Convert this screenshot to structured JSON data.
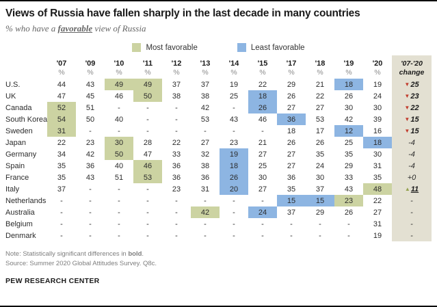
{
  "header": {
    "title": "Views of Russia have fallen sharply in the last decade in many countries",
    "subtitle_prefix": "% who have a ",
    "subtitle_emphasis": "favorable",
    "subtitle_suffix": " view of Russia"
  },
  "legend": {
    "most_label": "Most favorable",
    "least_label": "Least favorable"
  },
  "icons": {
    "decrease": "▼",
    "increase": "▲"
  },
  "colors": {
    "most_favorable": "#ccd3a2",
    "least_favorable": "#8db5e2",
    "change_col_bg": "#e3e0d2",
    "decrease": "#c13a2b",
    "increase": "#94a14e"
  },
  "chart_data": {
    "type": "table",
    "title": "Views of Russia have fallen sharply in the last decade in many countries",
    "unit": "%",
    "columns": [
      "'07",
      "'09",
      "'10",
      "'11",
      "'12",
      "'13",
      "'14",
      "'15",
      "'17",
      "'18",
      "'19",
      "'20"
    ],
    "change_header_line1": "'07-'20",
    "change_header_line2": "change",
    "rows": [
      {
        "country": "U.S.",
        "values": [
          "44",
          "43",
          "49",
          "49",
          "37",
          "37",
          "19",
          "22",
          "29",
          "21",
          "18",
          "19"
        ],
        "highlights": [
          null,
          null,
          "most",
          "most",
          null,
          null,
          null,
          null,
          null,
          null,
          "least",
          null
        ],
        "change": {
          "value": "25",
          "direction": "down",
          "significant": true
        }
      },
      {
        "country": "UK",
        "values": [
          "47",
          "45",
          "46",
          "50",
          "38",
          "38",
          "25",
          "18",
          "26",
          "22",
          "26",
          "24"
        ],
        "highlights": [
          null,
          null,
          null,
          "most",
          null,
          null,
          null,
          "least",
          null,
          null,
          null,
          null
        ],
        "change": {
          "value": "23",
          "direction": "down",
          "significant": true
        }
      },
      {
        "country": "Canada",
        "values": [
          "52",
          "51",
          "-",
          "-",
          "-",
          "42",
          "-",
          "26",
          "27",
          "27",
          "30",
          "30"
        ],
        "highlights": [
          "most",
          null,
          null,
          null,
          null,
          null,
          null,
          "least",
          null,
          null,
          null,
          null
        ],
        "change": {
          "value": "22",
          "direction": "down",
          "significant": true
        }
      },
      {
        "country": "South Korea",
        "values": [
          "54",
          "50",
          "40",
          "-",
          "-",
          "53",
          "43",
          "46",
          "36",
          "53",
          "42",
          "39"
        ],
        "highlights": [
          "most",
          null,
          null,
          null,
          null,
          null,
          null,
          null,
          "least",
          null,
          null,
          null
        ],
        "change": {
          "value": "15",
          "direction": "down",
          "significant": true
        }
      },
      {
        "country": "Sweden",
        "values": [
          "31",
          "-",
          "-",
          "-",
          "-",
          "-",
          "-",
          "-",
          "18",
          "17",
          "12",
          "16"
        ],
        "highlights": [
          "most",
          null,
          null,
          null,
          null,
          null,
          null,
          null,
          null,
          null,
          "least",
          null
        ],
        "change": {
          "value": "15",
          "direction": "down",
          "significant": true
        }
      },
      {
        "country": "Japan",
        "values": [
          "22",
          "23",
          "30",
          "28",
          "22",
          "27",
          "23",
          "21",
          "26",
          "26",
          "25",
          "18"
        ],
        "highlights": [
          null,
          null,
          "most",
          null,
          null,
          null,
          null,
          null,
          null,
          null,
          null,
          "least"
        ],
        "change": {
          "value": "-4",
          "direction": "none",
          "significant": false
        }
      },
      {
        "country": "Germany",
        "values": [
          "34",
          "42",
          "50",
          "47",
          "33",
          "32",
          "19",
          "27",
          "27",
          "35",
          "35",
          "30"
        ],
        "highlights": [
          null,
          null,
          "most",
          null,
          null,
          null,
          "least",
          null,
          null,
          null,
          null,
          null
        ],
        "change": {
          "value": "-4",
          "direction": "none",
          "significant": false
        }
      },
      {
        "country": "Spain",
        "values": [
          "35",
          "36",
          "40",
          "46",
          "36",
          "38",
          "18",
          "25",
          "27",
          "24",
          "29",
          "31"
        ],
        "highlights": [
          null,
          null,
          null,
          "most",
          null,
          null,
          "least",
          null,
          null,
          null,
          null,
          null
        ],
        "change": {
          "value": "-4",
          "direction": "none",
          "significant": false
        }
      },
      {
        "country": "France",
        "values": [
          "35",
          "43",
          "51",
          "53",
          "36",
          "36",
          "26",
          "30",
          "36",
          "30",
          "33",
          "35"
        ],
        "highlights": [
          null,
          null,
          null,
          "most",
          null,
          null,
          "least",
          null,
          null,
          null,
          null,
          null
        ],
        "change": {
          "value": "+0",
          "direction": "none",
          "significant": false
        }
      },
      {
        "country": "Italy",
        "values": [
          "37",
          "-",
          "-",
          "-",
          "23",
          "31",
          "20",
          "27",
          "35",
          "37",
          "43",
          "48"
        ],
        "highlights": [
          null,
          null,
          null,
          null,
          null,
          null,
          "least",
          null,
          null,
          null,
          null,
          "most"
        ],
        "change": {
          "value": "11",
          "direction": "up",
          "significant": true,
          "underline": true
        }
      },
      {
        "country": "Netherlands",
        "values": [
          "-",
          "-",
          "-",
          "-",
          "-",
          "-",
          "-",
          "-",
          "15",
          "15",
          "23",
          "22"
        ],
        "highlights": [
          null,
          null,
          null,
          null,
          null,
          null,
          null,
          null,
          "least",
          "least",
          "most",
          null
        ],
        "change": {
          "value": "-",
          "direction": "none",
          "significant": false
        }
      },
      {
        "country": "Australia",
        "values": [
          "-",
          "-",
          "-",
          "-",
          "-",
          "42",
          "-",
          "24",
          "37",
          "29",
          "26",
          "27"
        ],
        "highlights": [
          null,
          null,
          null,
          null,
          null,
          "most",
          null,
          "least",
          null,
          null,
          null,
          null
        ],
        "change": {
          "value": "-",
          "direction": "none",
          "significant": false
        }
      },
      {
        "country": "Belgium",
        "values": [
          "-",
          "-",
          "-",
          "-",
          "-",
          "-",
          "-",
          "-",
          "-",
          "-",
          "-",
          "31"
        ],
        "highlights": [
          null,
          null,
          null,
          null,
          null,
          null,
          null,
          null,
          null,
          null,
          null,
          null
        ],
        "change": {
          "value": "-",
          "direction": "none",
          "significant": false
        }
      },
      {
        "country": "Denmark",
        "values": [
          "-",
          "-",
          "-",
          "-",
          "-",
          "-",
          "-",
          "-",
          "-",
          "-",
          "-",
          "19"
        ],
        "highlights": [
          null,
          null,
          null,
          null,
          null,
          null,
          null,
          null,
          null,
          null,
          null,
          null
        ],
        "change": {
          "value": "-",
          "direction": "none",
          "significant": false
        }
      }
    ]
  },
  "footer": {
    "note_prefix": "Note: Statistically significant differences in ",
    "note_bold": "bold",
    "note_suffix": ".",
    "source": "Source: Summer 2020 Global Attitudes Survey. Q8c.",
    "brand": "PEW RESEARCH CENTER"
  }
}
